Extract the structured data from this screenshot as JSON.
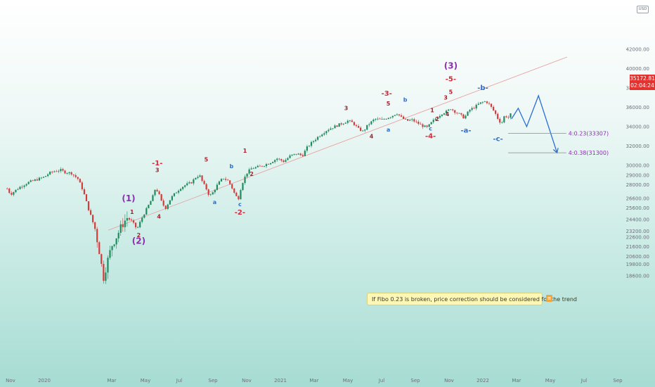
{
  "chart_data": {
    "type": "candlestick",
    "note": "If Fibo 0.23 is broken, price correction should be considered for the trend",
    "last_price": "35172.81",
    "countdown": "02:04:24",
    "currency": "USD",
    "y_axis": {
      "min": 18000,
      "max": 42000,
      "ticks": [
        "18600.00",
        "19800.00",
        "20600.00",
        "21600.00",
        "22600.00",
        "23200.00",
        "24400.00",
        "25600.00",
        "26600.00",
        "28000.00",
        "29000.00",
        "30000.00",
        "32000.00",
        "34000.00",
        "36000.00",
        "38000.00",
        "40000.00",
        "42000.00"
      ]
    },
    "x_axis": {
      "labels": [
        {
          "label": "Nov",
          "t": 0
        },
        {
          "label": "2020",
          "t": 2
        },
        {
          "label": "Mar",
          "t": 6
        },
        {
          "label": "May",
          "t": 8
        },
        {
          "label": "Jul",
          "t": 10
        },
        {
          "label": "Sep",
          "t": 12
        },
        {
          "label": "Nov",
          "t": 14
        },
        {
          "label": "2021",
          "t": 16
        },
        {
          "label": "Mar",
          "t": 18
        },
        {
          "label": "May",
          "t": 20
        },
        {
          "label": "Jul",
          "t": 22
        },
        {
          "label": "Sep",
          "t": 24
        },
        {
          "label": "Nov",
          "t": 26
        },
        {
          "label": "2022",
          "t": 28
        },
        {
          "label": "Mar",
          "t": 30
        },
        {
          "label": "May",
          "t": 32
        },
        {
          "label": "Jul",
          "t": 34
        },
        {
          "label": "Sep",
          "t": 36
        }
      ]
    },
    "price_path": [
      [
        -0.2,
        27600
      ],
      [
        0.0,
        27000
      ],
      [
        0.5,
        27700
      ],
      [
        1.0,
        28200
      ],
      [
        1.5,
        28500
      ],
      [
        2.0,
        28800
      ],
      [
        2.3,
        29200
      ],
      [
        2.6,
        29400
      ],
      [
        3.0,
        29500
      ],
      [
        3.2,
        29300
      ],
      [
        3.6,
        29200
      ],
      [
        4.0,
        28600
      ],
      [
        4.3,
        27400
      ],
      [
        4.6,
        25600
      ],
      [
        5.0,
        23500
      ],
      [
        5.3,
        20800
      ],
      [
        5.5,
        18300
      ],
      [
        5.7,
        19800
      ],
      [
        6.0,
        21700
      ],
      [
        6.3,
        22700
      ],
      [
        6.6,
        23800
      ],
      [
        6.9,
        24600
      ],
      [
        7.2,
        24200
      ],
      [
        7.5,
        23400
      ],
      [
        7.8,
        24600
      ],
      [
        8.1,
        25600
      ],
      [
        8.4,
        26600
      ],
      [
        8.6,
        27700
      ],
      [
        8.8,
        27000
      ],
      [
        9.0,
        26000
      ],
      [
        9.2,
        25600
      ],
      [
        9.5,
        26600
      ],
      [
        9.8,
        27200
      ],
      [
        10.1,
        27700
      ],
      [
        10.4,
        28000
      ],
      [
        10.7,
        28200
      ],
      [
        11.0,
        28800
      ],
      [
        11.2,
        29000
      ],
      [
        11.4,
        28200
      ],
      [
        11.6,
        27600
      ],
      [
        11.8,
        26800
      ],
      [
        12.0,
        27200
      ],
      [
        12.3,
        28100
      ],
      [
        12.6,
        28700
      ],
      [
        12.9,
        28400
      ],
      [
        13.1,
        27800
      ],
      [
        13.3,
        27000
      ],
      [
        13.5,
        26500
      ],
      [
        13.7,
        28000
      ],
      [
        14.0,
        29200
      ],
      [
        14.3,
        29700
      ],
      [
        14.6,
        29800
      ],
      [
        15.0,
        30000
      ],
      [
        15.4,
        30300
      ],
      [
        15.8,
        30700
      ],
      [
        16.2,
        30400
      ],
      [
        16.6,
        31000
      ],
      [
        17.0,
        31200
      ],
      [
        17.3,
        31000
      ],
      [
        17.6,
        31900
      ],
      [
        18.0,
        32600
      ],
      [
        18.4,
        33200
      ],
      [
        18.8,
        33700
      ],
      [
        19.2,
        34000
      ],
      [
        19.6,
        34300
      ],
      [
        20.0,
        34600
      ],
      [
        20.3,
        34400
      ],
      [
        20.6,
        33800
      ],
      [
        20.9,
        33500
      ],
      [
        21.2,
        34200
      ],
      [
        21.6,
        34800
      ],
      [
        22.0,
        34700
      ],
      [
        22.3,
        34900
      ],
      [
        22.6,
        35100
      ],
      [
        22.9,
        35400
      ],
      [
        23.2,
        34900
      ],
      [
        23.5,
        34600
      ],
      [
        23.8,
        34700
      ],
      [
        24.1,
        34400
      ],
      [
        24.4,
        34100
      ],
      [
        24.7,
        33900
      ],
      [
        25.0,
        34500
      ],
      [
        25.3,
        35000
      ],
      [
        25.6,
        35400
      ],
      [
        25.9,
        35600
      ],
      [
        26.1,
        35900
      ],
      [
        26.3,
        35600
      ],
      [
        26.6,
        35300
      ],
      [
        26.9,
        34900
      ],
      [
        27.2,
        35700
      ],
      [
        27.5,
        36000
      ],
      [
        27.8,
        36400
      ],
      [
        28.1,
        36600
      ],
      [
        28.3,
        36500
      ],
      [
        28.5,
        36000
      ],
      [
        28.7,
        35500
      ],
      [
        28.9,
        34800
      ],
      [
        29.1,
        34300
      ],
      [
        29.3,
        35200
      ],
      [
        29.5,
        34900
      ],
      [
        29.7,
        35400
      ]
    ],
    "series": [
      {
        "name": "trendline",
        "x": [
          5.8,
          33.0
        ],
        "y": [
          23300,
          41200
        ],
        "color": "#e89a9a"
      },
      {
        "name": "projection",
        "x": [
          29.7,
          30.1,
          30.6,
          31.3,
          32.4
        ],
        "y": [
          34800,
          35900,
          34000,
          37200,
          31300
        ],
        "color": "#2b6fd6"
      }
    ],
    "fib_levels": [
      {
        "label": "4:0.23(33307)",
        "value": 33307,
        "x_start": 29.5,
        "x_end": 32.2
      },
      {
        "label": "4:0.38(31300)",
        "value": 31300,
        "x_start": 29.5,
        "x_end": 32.2
      }
    ],
    "wave_labels": [
      {
        "text": "(1)",
        "t": 7.0,
        "y": 26300,
        "color": "#8b2fb0",
        "size": 12
      },
      {
        "text": "1",
        "t": 7.2,
        "y": 25000,
        "color": "#a3222f",
        "size": 8
      },
      {
        "text": "2",
        "t": 7.6,
        "y": 22600,
        "color": "#a3222f",
        "size": 8
      },
      {
        "text": "(2)",
        "t": 7.6,
        "y": 21900,
        "color": "#8b2fb0",
        "size": 12
      },
      {
        "text": "-1-",
        "t": 8.7,
        "y": 30000,
        "color": "#d6283d",
        "size": 10
      },
      {
        "text": "3",
        "t": 8.7,
        "y": 29300,
        "color": "#a3222f",
        "size": 8
      },
      {
        "text": "4",
        "t": 8.8,
        "y": 24500,
        "color": "#a3222f",
        "size": 8
      },
      {
        "text": "5",
        "t": 11.6,
        "y": 30400,
        "color": "#a3222f",
        "size": 8
      },
      {
        "text": "b",
        "t": 13.1,
        "y": 29700,
        "color": "#2b6fd6",
        "size": 8
      },
      {
        "text": "a",
        "t": 12.1,
        "y": 26000,
        "color": "#2b6fd6",
        "size": 8
      },
      {
        "text": "c",
        "t": 13.6,
        "y": 25800,
        "color": "#2b6fd6",
        "size": 8
      },
      {
        "text": "-2-",
        "t": 13.6,
        "y": 24900,
        "color": "#d6283d",
        "size": 10
      },
      {
        "text": "1",
        "t": 13.9,
        "y": 31300,
        "color": "#a3222f",
        "size": 8
      },
      {
        "text": "2",
        "t": 14.3,
        "y": 28900,
        "color": "#a3222f",
        "size": 8
      },
      {
        "text": "3",
        "t": 19.9,
        "y": 35700,
        "color": "#a3222f",
        "size": 8
      },
      {
        "text": "4",
        "t": 21.4,
        "y": 32800,
        "color": "#a3222f",
        "size": 8
      },
      {
        "text": "-3-",
        "t": 22.3,
        "y": 37200,
        "color": "#d6283d",
        "size": 10
      },
      {
        "text": "5",
        "t": 22.4,
        "y": 36200,
        "color": "#a3222f",
        "size": 8
      },
      {
        "text": "a",
        "t": 22.4,
        "y": 33500,
        "color": "#2b6fd6",
        "size": 8
      },
      {
        "text": "b",
        "t": 23.4,
        "y": 36600,
        "color": "#2b6fd6",
        "size": 8
      },
      {
        "text": "1",
        "t": 25.0,
        "y": 35500,
        "color": "#a3222f",
        "size": 8
      },
      {
        "text": "c",
        "t": 24.9,
        "y": 33600,
        "color": "#2b6fd6",
        "size": 8
      },
      {
        "text": "-4-",
        "t": 24.9,
        "y": 32800,
        "color": "#d6283d",
        "size": 10
      },
      {
        "text": "2",
        "t": 25.3,
        "y": 34600,
        "color": "#a3222f",
        "size": 8
      },
      {
        "text": "3",
        "t": 25.8,
        "y": 36800,
        "color": "#a3222f",
        "size": 8
      },
      {
        "text": "4",
        "t": 25.9,
        "y": 35100,
        "color": "#a3222f",
        "size": 8
      },
      {
        "text": "5",
        "t": 26.1,
        "y": 37400,
        "color": "#a3222f",
        "size": 8
      },
      {
        "text": "-5-",
        "t": 26.1,
        "y": 38700,
        "color": "#d6283d",
        "size": 10
      },
      {
        "text": "(3)",
        "t": 26.1,
        "y": 40000,
        "color": "#8b2fb0",
        "size": 12
      },
      {
        "text": "-b-",
        "t": 28.0,
        "y": 37800,
        "color": "#2b6fd6",
        "size": 10
      },
      {
        "text": "-a-",
        "t": 27.0,
        "y": 33400,
        "color": "#2b6fd6",
        "size": 10
      },
      {
        "text": "-c-",
        "t": 28.9,
        "y": 32500,
        "color": "#2b6fd6",
        "size": 10
      }
    ]
  }
}
